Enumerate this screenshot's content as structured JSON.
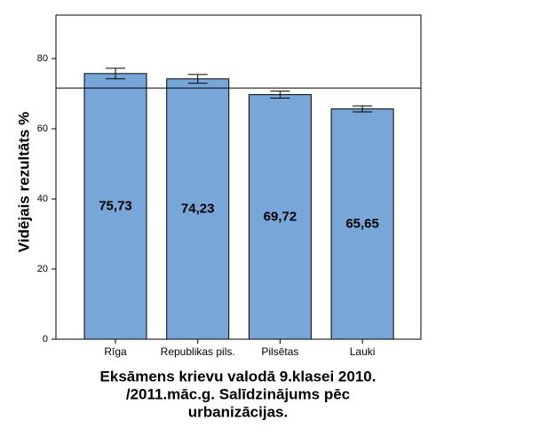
{
  "chart_data": {
    "type": "bar",
    "ylabel": "Vidējais rezultāts %",
    "xlabel": [
      "Eksāmens krievu valodā 9.klasei 2010.",
      "/2011.māc.g. Salīdzinājums pēc",
      "urbanizācijas."
    ],
    "categories": [
      "Rīga",
      "Republikas pils.",
      "Pilsētas",
      "Lauki"
    ],
    "values": [
      75.73,
      74.23,
      69.72,
      65.65
    ],
    "value_labels": [
      "75,73",
      "74,23",
      "69,72",
      "65,65"
    ],
    "errors": [
      1.5,
      1.25,
      1.0,
      0.85
    ],
    "reference_line": 71.6,
    "color": "#79a6d8",
    "ylim": [
      0,
      92.4
    ],
    "yticks": [
      0,
      20,
      40,
      60,
      80
    ]
  }
}
